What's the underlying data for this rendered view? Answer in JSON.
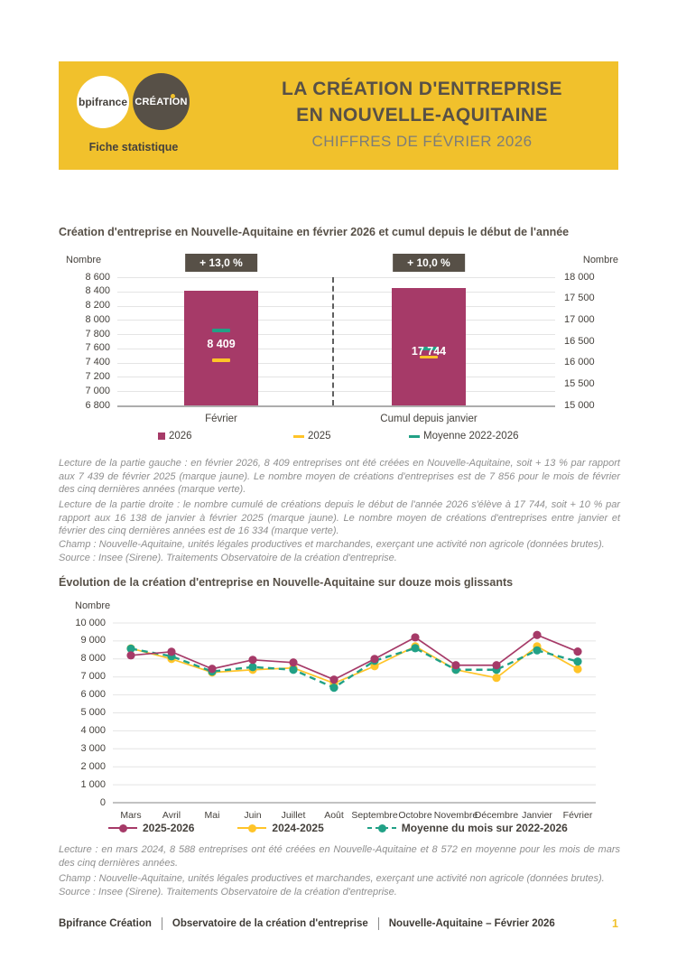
{
  "theme": {
    "brand_yellow": "#F1C12C",
    "brand_dark": "#575047",
    "magenta": "#A63A68",
    "yellow_series": "#FFC428",
    "green_series": "#21A186",
    "text_gray": "#8F8F8F"
  },
  "header": {
    "logo_bpifrance": "bpifrance",
    "logo_creation": "CRÉATION",
    "fiche_label": "Fiche statistique",
    "title_line1": "LA CRÉATION D'ENTREPRISE",
    "title_line2": "EN NOUVELLE-AQUITAINE",
    "subtitle": "CHIFFRES DE FÉVRIER 2026"
  },
  "section1": {
    "lecture_left": "Lecture de la partie gauche : en février 2026, 8 409 entreprises ont été créées en Nouvelle-Aquitaine, soit + 13 % par rapport aux 7 439 de février 2025 (marque jaune). Le nombre moyen de créations d'entreprises est de 7 856 pour le mois de février des cinq dernières années (marque verte).",
    "lecture_right": "Lecture de la partie droite : le nombre cumulé de créations depuis le début de l'année 2026 s'élève à 17 744, soit + 10 % par rapport aux 16 138 de janvier à février 2025 (marque jaune). Le nombre moyen de créations d'entreprises entre janvier et février des cinq dernières années est de 16 334 (marque verte).",
    "champ": "Champ : Nouvelle-Aquitaine, unités légales productives et marchandes, exerçant une activité non agricole (données brutes).",
    "source": "Source : Insee (Sirene). Traitements Observatoire de la création d'entreprise."
  },
  "section2": {
    "lecture": "Lecture : en mars 2024, 8 588 entreprises ont été créées en Nouvelle-Aquitaine et 8 572 en moyenne pour les mois de mars des cinq dernières années.",
    "champ": "Champ : Nouvelle-Aquitaine, unités légales productives et marchandes, exerçant une activité non agricole (données brutes).",
    "source": "Source : Insee (Sirene). Traitements Observatoire de la création d'entreprise."
  },
  "footer": {
    "items": [
      "Bpifrance Création",
      "Observatoire de la création d'entreprise",
      "Nouvelle-Aquitaine – Février 2026"
    ],
    "page": "1"
  },
  "chart_data": [
    {
      "type": "bar",
      "title": "Création d'entreprise en Nouvelle-Aquitaine en février 2026 et cumul depuis le début de l'année",
      "axis_label_left": "Nombre",
      "axis_label_right": "Nombre",
      "left_axis": {
        "min": 6800,
        "max": 8600,
        "step": 200
      },
      "right_axis": {
        "min": 15000,
        "max": 18000,
        "step": 500
      },
      "groups": [
        {
          "label": "Février",
          "badge": "+ 13,0 %",
          "axis": "left",
          "bar_value": 8409,
          "bar_label": "8 409",
          "mark_2025": 7439,
          "mark_moyenne": 7856
        },
        {
          "label": "Cumul depuis janvier",
          "badge": "+ 10,0 %",
          "axis": "right",
          "bar_value": 17744,
          "bar_label": "17 744",
          "mark_2025": 16138,
          "mark_moyenne": 16334
        }
      ],
      "legend": [
        {
          "label": "2026",
          "color": "#A63A68",
          "shape": "square"
        },
        {
          "label": "2025",
          "color": "#FFC428",
          "shape": "dash"
        },
        {
          "label": "Moyenne 2022-2026",
          "color": "#21A186",
          "shape": "dash"
        }
      ]
    },
    {
      "type": "line",
      "title": "Évolution de la création d'entreprise en Nouvelle-Aquitaine sur douze mois glissants",
      "ylabel": "Nombre",
      "ylim": [
        0,
        10000
      ],
      "ytick_step": 1000,
      "grid": true,
      "legend_position": "bottom",
      "categories": [
        "Mars",
        "Avril",
        "Mai",
        "Juin",
        "Juillet",
        "Août",
        "Septembre",
        "Octobre",
        "Novembre",
        "Décembre",
        "Janvier",
        "Février"
      ],
      "series": [
        {
          "name": "2025-2026",
          "color": "#A63A68",
          "dashed": false,
          "values": [
            8200,
            8400,
            7450,
            7950,
            7800,
            6850,
            8000,
            9200,
            7650,
            7650,
            9335,
            8409
          ]
        },
        {
          "name": "2024-2025",
          "color": "#FFC428",
          "dashed": false,
          "values": [
            8588,
            8000,
            7250,
            7400,
            7500,
            6650,
            7600,
            8700,
            7400,
            6950,
            8699,
            7439
          ]
        },
        {
          "name": "Moyenne du mois sur 2022-2026",
          "color": "#21A186",
          "dashed": true,
          "values": [
            8572,
            8150,
            7300,
            7550,
            7400,
            6400,
            7900,
            8600,
            7400,
            7400,
            8478,
            7856
          ]
        }
      ]
    }
  ]
}
